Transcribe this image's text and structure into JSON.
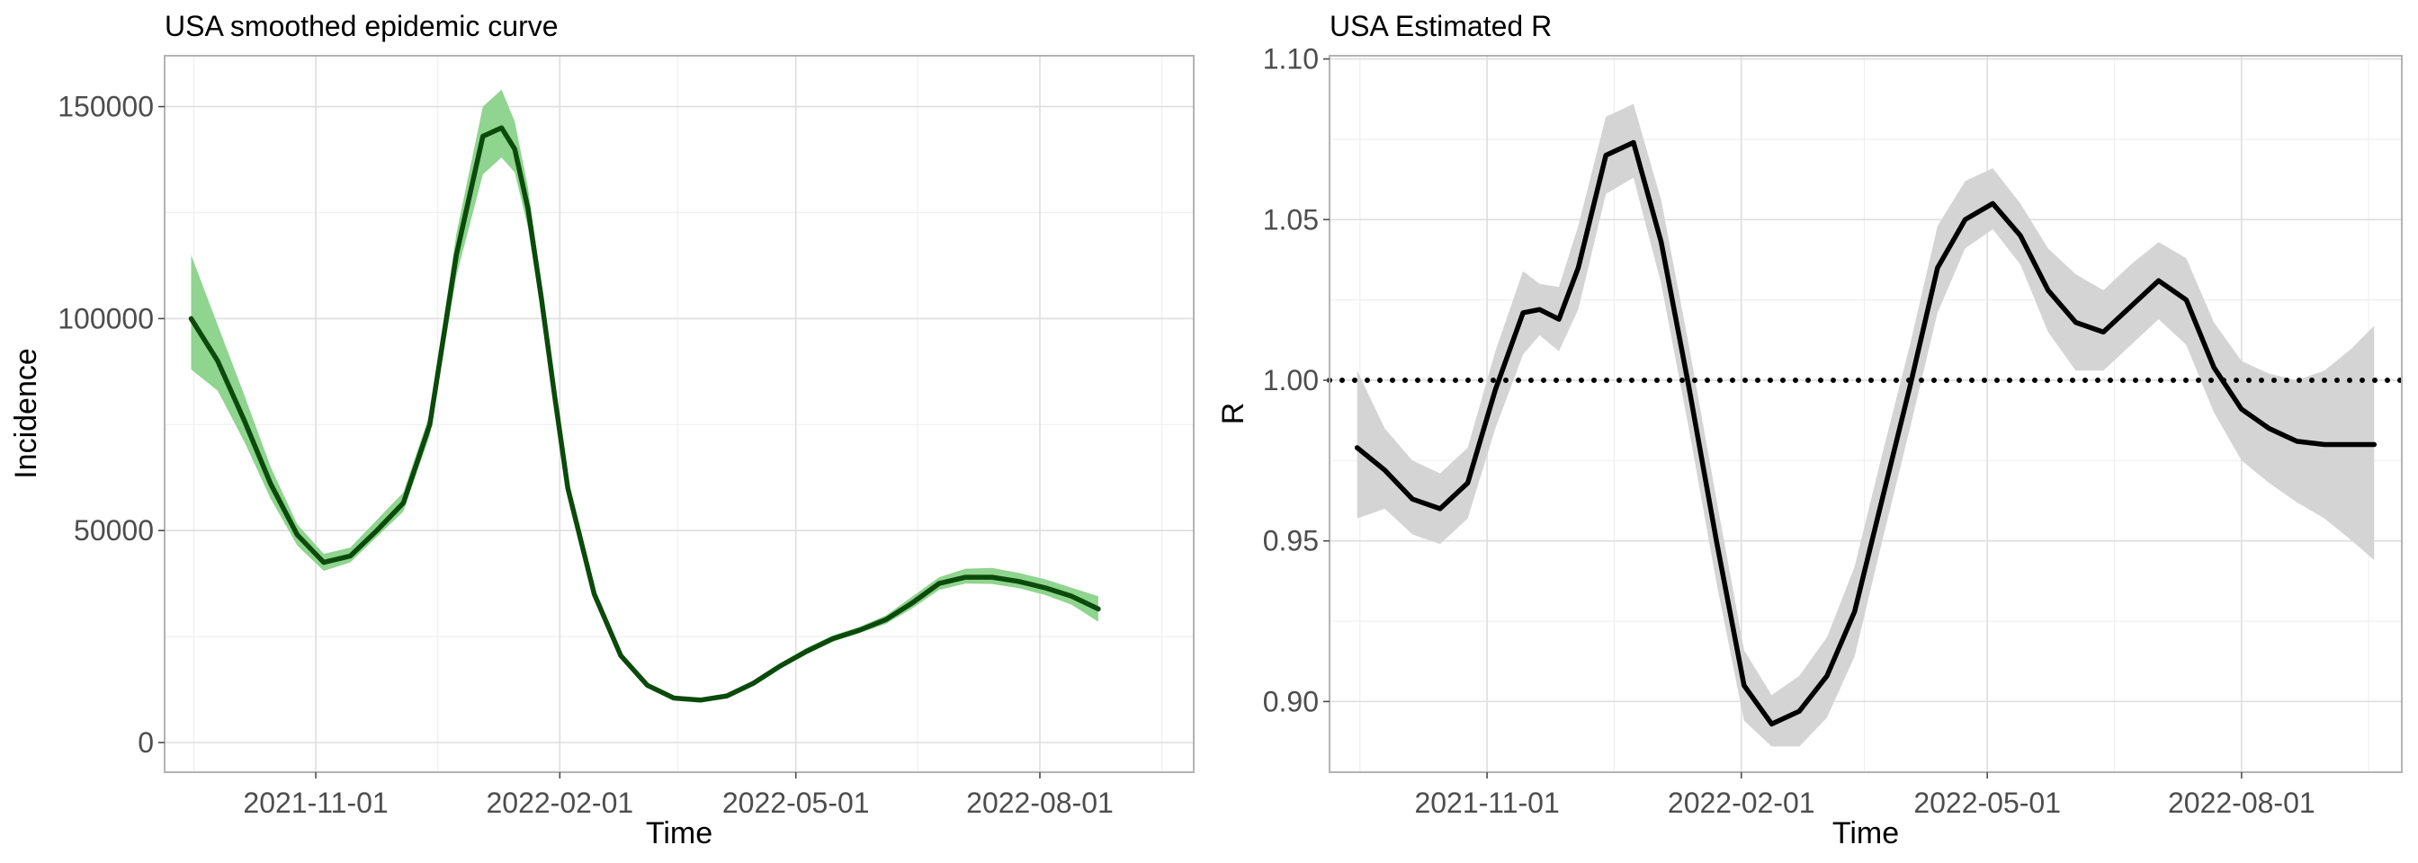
{
  "chart_data": [
    {
      "type": "line",
      "title": "USA smoothed epidemic curve",
      "xlabel": "Time",
      "ylabel": "Incidence",
      "x_ticks": [
        "2021-11-01",
        "2022-02-01",
        "2022-05-01",
        "2022-08-01"
      ],
      "y_ticks": [
        0,
        50000,
        100000,
        150000
      ],
      "xlim": [
        "2021-09-05",
        "2022-09-28"
      ],
      "ylim": [
        -7000,
        162000
      ],
      "grid": true,
      "colors": {
        "band": "#8fd48f",
        "line": "#0a4a0a"
      },
      "series": [
        {
          "x": [
            "2021-09-15",
            "2021-09-25",
            "2021-10-05",
            "2021-10-15",
            "2021-10-25",
            "2021-11-04",
            "2021-11-14",
            "2021-11-24",
            "2021-12-04",
            "2021-12-14",
            "2021-12-24",
            "2022-01-03",
            "2022-01-10",
            "2022-01-15",
            "2022-01-20",
            "2022-01-25",
            "2022-01-30",
            "2022-02-04",
            "2022-02-14",
            "2022-02-24",
            "2022-03-06",
            "2022-03-16",
            "2022-03-26",
            "2022-04-05",
            "2022-04-15",
            "2022-04-25",
            "2022-05-05",
            "2022-05-15",
            "2022-05-25",
            "2022-06-04",
            "2022-06-14",
            "2022-06-24",
            "2022-07-04",
            "2022-07-14",
            "2022-07-24",
            "2022-08-03",
            "2022-08-13",
            "2022-08-23"
          ],
          "y": [
            100000,
            90000,
            76000,
            61000,
            49000,
            42500,
            44000,
            50000,
            56500,
            75000,
            115000,
            143000,
            145000,
            140000,
            126000,
            105000,
            82000,
            60000,
            35000,
            20500,
            13500,
            10500,
            10000,
            11000,
            14000,
            18000,
            21500,
            24500,
            26500,
            29000,
            33000,
            37500,
            39000,
            39000,
            38000,
            36500,
            34500,
            31500
          ],
          "lower": [
            88000,
            83000,
            71000,
            57500,
            46500,
            40500,
            42500,
            48500,
            54500,
            72500,
            110000,
            134000,
            138000,
            134500,
            121500,
            101500,
            79500,
            58500,
            34000,
            20000,
            13000,
            10200,
            9700,
            10700,
            13500,
            17400,
            20800,
            23800,
            25800,
            28000,
            31700,
            36000,
            37500,
            37400,
            36400,
            34800,
            32500,
            28500
          ],
          "upper": [
            115000,
            98500,
            82000,
            65000,
            51500,
            44500,
            46000,
            52500,
            59000,
            77500,
            120000,
            150000,
            154000,
            146500,
            131000,
            108500,
            85000,
            61800,
            36200,
            21200,
            14100,
            10900,
            10400,
            11500,
            14600,
            18700,
            22300,
            25300,
            27300,
            30000,
            34500,
            39000,
            41000,
            41200,
            40000,
            38500,
            36500,
            34500
          ]
        }
      ]
    },
    {
      "type": "line",
      "title": "USA Estimated R",
      "xlabel": "Time",
      "ylabel": "R",
      "x_ticks": [
        "2021-11-01",
        "2022-02-01",
        "2022-05-01",
        "2022-08-01"
      ],
      "y_ticks": [
        0.9,
        0.95,
        1.0,
        1.05,
        1.1
      ],
      "y_tick_labels": [
        "0.90",
        "0.95",
        "1.00",
        "1.05",
        "1.10"
      ],
      "xlim": [
        "2021-09-05",
        "2022-09-28"
      ],
      "ylim": [
        0.878,
        1.101
      ],
      "grid": true,
      "reference_line": {
        "y": 1.0,
        "style": "dotted"
      },
      "colors": {
        "band": "#d4d4d4",
        "line": "#000000",
        "reference": "#000000"
      },
      "series": [
        {
          "x": [
            "2021-09-15",
            "2021-09-25",
            "2021-10-05",
            "2021-10-15",
            "2021-10-25",
            "2021-11-04",
            "2021-11-14",
            "2021-11-20",
            "2021-11-27",
            "2021-12-04",
            "2021-12-14",
            "2021-12-24",
            "2022-01-03",
            "2022-01-13",
            "2022-01-23",
            "2022-02-02",
            "2022-02-12",
            "2022-02-22",
            "2022-03-04",
            "2022-03-14",
            "2022-03-24",
            "2022-04-03",
            "2022-04-13",
            "2022-04-23",
            "2022-05-03",
            "2022-05-13",
            "2022-05-23",
            "2022-06-02",
            "2022-06-12",
            "2022-06-22",
            "2022-07-02",
            "2022-07-12",
            "2022-07-22",
            "2022-08-01",
            "2022-08-11",
            "2022-08-21",
            "2022-08-31",
            "2022-09-10",
            "2022-09-18"
          ],
          "y": [
            0.979,
            0.972,
            0.963,
            0.96,
            0.968,
            0.997,
            1.021,
            1.022,
            1.019,
            1.035,
            1.07,
            1.074,
            1.043,
            0.998,
            0.95,
            0.905,
            0.893,
            0.897,
            0.908,
            0.928,
            0.963,
            0.998,
            1.035,
            1.05,
            1.055,
            1.045,
            1.028,
            1.018,
            1.015,
            1.023,
            1.031,
            1.025,
            1.004,
            0.991,
            0.985,
            0.981,
            0.98,
            0.98,
            0.98
          ],
          "lower": [
            0.957,
            0.96,
            0.952,
            0.949,
            0.957,
            0.985,
            1.008,
            1.014,
            1.009,
            1.022,
            1.058,
            1.063,
            1.03,
            0.985,
            0.937,
            0.894,
            0.886,
            0.886,
            0.895,
            0.914,
            0.95,
            0.985,
            1.021,
            1.041,
            1.047,
            1.036,
            1.015,
            1.003,
            1.003,
            1.011,
            1.019,
            1.011,
            0.99,
            0.975,
            0.968,
            0.962,
            0.957,
            0.95,
            0.944
          ],
          "upper": [
            1.003,
            0.985,
            0.975,
            0.971,
            0.979,
            1.009,
            1.034,
            1.03,
            1.029,
            1.048,
            1.082,
            1.086,
            1.056,
            1.011,
            0.963,
            0.916,
            0.902,
            0.908,
            0.92,
            0.942,
            0.977,
            1.011,
            1.048,
            1.062,
            1.066,
            1.055,
            1.041,
            1.033,
            1.028,
            1.036,
            1.043,
            1.038,
            1.018,
            1.006,
            1.002,
            1.0,
            1.003,
            1.01,
            1.017
          ]
        }
      ]
    }
  ]
}
